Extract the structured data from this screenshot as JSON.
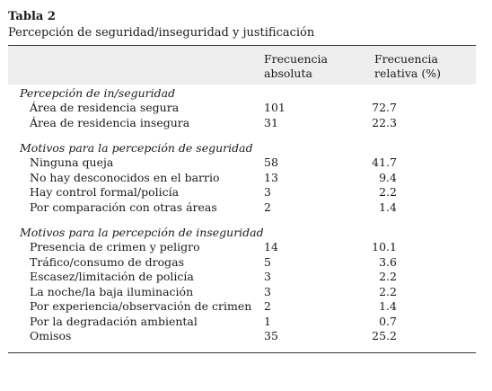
{
  "title": "Tabla 2",
  "subtitle": "Percepción de seguridad/inseguridad y justificación",
  "headers": {
    "absolute": [
      "Frecuencia",
      "absoluta"
    ],
    "relative": [
      "Frecuencia",
      "relativa (%)"
    ]
  },
  "sections": [
    {
      "heading": "Percepción de in/seguridad",
      "rows": [
        {
          "label": "Área de residencia segura",
          "abs": "101",
          "rel": "72.7"
        },
        {
          "label": "Área de residencia insegura",
          "abs": "31",
          "rel": "22.3"
        }
      ]
    },
    {
      "heading": "Motivos para la percepción de seguridad",
      "rows": [
        {
          "label": "Ninguna queja",
          "abs": "58",
          "rel": "41.7"
        },
        {
          "label": "No hay desconocidos en el barrio",
          "abs": "13",
          "rel": "9.4"
        },
        {
          "label": "Hay control formal/policía",
          "abs": "3",
          "rel": "2.2"
        },
        {
          "label": "Por comparación con otras áreas",
          "abs": "2",
          "rel": "1.4"
        }
      ]
    },
    {
      "heading": "Motivos para la percepción de inseguridad",
      "rows": [
        {
          "label": "Presencia de crimen y peligro",
          "abs": "14",
          "rel": "10.1"
        },
        {
          "label": "Tráfico/consumo de drogas",
          "abs": "5",
          "rel": "3.6"
        },
        {
          "label": "Escasez/limitación de policía",
          "abs": "3",
          "rel": "2.2"
        },
        {
          "label": "La noche/la baja iluminación",
          "abs": "3",
          "rel": "2.2"
        },
        {
          "label": "Por experiencia/observación de crimen",
          "abs": "2",
          "rel": "1.4"
        },
        {
          "label": "Por la degradación ambiental",
          "abs": "1",
          "rel": "0.7"
        },
        {
          "label": "Omisos",
          "abs": "35",
          "rel": "25.2"
        }
      ]
    }
  ]
}
